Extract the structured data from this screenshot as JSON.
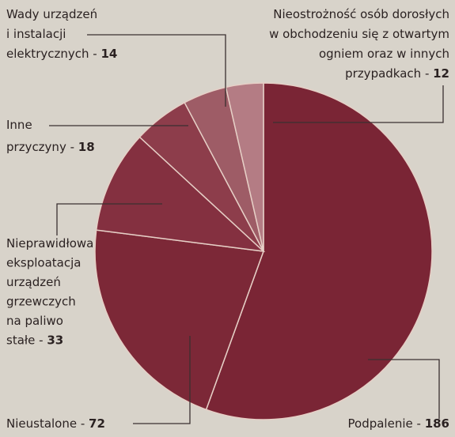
{
  "chart_data": {
    "type": "pie",
    "categories": [
      [
        "Podpalenie"
      ],
      [
        "Nieustalone"
      ],
      [
        "Nieprawidłowa",
        "eksploatacja",
        "urządzeń",
        "grzewczych",
        "na paliwo",
        "stałe"
      ],
      [
        "Inne",
        "przyczyny"
      ],
      [
        "Wady urządzeń",
        "i instalacji",
        "elektrycznych"
      ],
      [
        "Nieostrożność osób dorosłych",
        "w obchodzeniu się z otwartym",
        "ogniem oraz w innych",
        "przypadkach"
      ]
    ],
    "separator": " - ",
    "values": [
      186,
      72,
      33,
      18,
      14,
      12
    ],
    "colors": [
      "#7a2535",
      "#7c2837",
      "#843040",
      "#8d3d4b",
      "#9e5c66",
      "#b47c84"
    ]
  }
}
